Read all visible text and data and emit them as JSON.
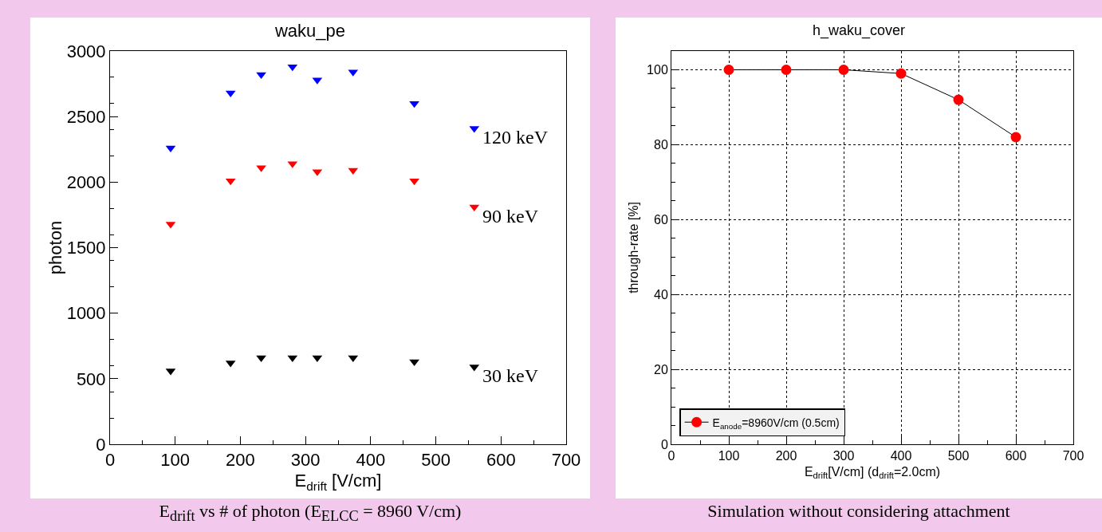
{
  "chart_data": [
    {
      "type": "scatter",
      "title": "waku_pe",
      "xlabel": "E$_{drift}$ [V/cm]",
      "ylabel": "photon",
      "marker": "triangle",
      "grid": false,
      "legend": false,
      "x": [
        93,
        185,
        232,
        280,
        318,
        373,
        467,
        559
      ],
      "series": [
        {
          "name": "120 keV",
          "color": "#0000ff",
          "values": [
            2260,
            2680,
            2820,
            2880,
            2780,
            2840,
            2600,
            2410
          ]
        },
        {
          "name": "90 keV",
          "color": "#ff0000",
          "values": [
            1680,
            2010,
            2110,
            2140,
            2080,
            2090,
            2010,
            1810
          ]
        },
        {
          "name": "30 keV",
          "color": "#000000",
          "values": [
            560,
            620,
            660,
            660,
            660,
            660,
            630,
            590
          ]
        }
      ],
      "xlim": [
        0,
        700
      ],
      "xticks": [
        0,
        100,
        200,
        300,
        400,
        500,
        600,
        700
      ],
      "ylim": [
        0,
        3000
      ],
      "yticks": [
        0,
        500,
        1000,
        1500,
        2000,
        2500,
        3000
      ],
      "annotations": [
        "E$_{drift}$ vs # of photon (E$_{ELCC}$ = 8960 V/cm)"
      ]
    },
    {
      "type": "line",
      "title": "h_waku_cover",
      "xlabel": "E$_{drift}$[V/cm] (d$_{drift}$=2.0cm)",
      "ylabel": "through-rate [%]",
      "marker": "circle",
      "grid": true,
      "legend": "bottom left",
      "line_style": "solid",
      "x": [
        100,
        200,
        300,
        400,
        500,
        600
      ],
      "series": [
        {
          "name": "E$_{anode}$=8960V/cm (0.5cm)",
          "color": "#ff0000",
          "values": [
            100,
            100,
            100,
            99,
            92,
            82
          ]
        }
      ],
      "xlim": [
        0,
        700
      ],
      "xticks": [
        0,
        100,
        200,
        300,
        400,
        500,
        600,
        700
      ],
      "ylim": [
        0,
        105
      ],
      "yticks": [
        0,
        20,
        40,
        60,
        80,
        100
      ],
      "annotations": [
        "Simulation without considering attachment"
      ]
    }
  ]
}
